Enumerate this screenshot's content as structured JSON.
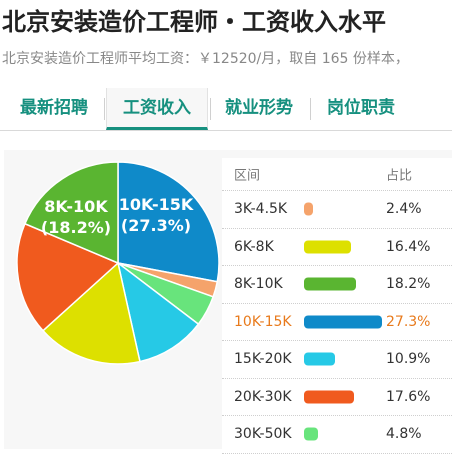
{
  "header": {
    "title": "北京安装造价工程师・工资收入水平",
    "subtitle": "北京安装造价工程师平均工资：￥12520/月，取自 165 份样本，"
  },
  "tabs": [
    {
      "label": "最新招聘",
      "active": false
    },
    {
      "label": "工资收入",
      "active": true
    },
    {
      "label": "就业形势",
      "active": false
    },
    {
      "label": "岗位职责",
      "active": false
    }
  ],
  "table": {
    "col_range": "区间",
    "col_share": "占比",
    "highlight_color": "#e87a1c"
  },
  "chart_data": {
    "type": "pie",
    "categories": [
      "3K-4.5K",
      "6K-8K",
      "8K-10K",
      "10K-15K",
      "15K-20K",
      "20K-30K",
      "30K-50K"
    ],
    "values": [
      2.4,
      16.4,
      18.2,
      27.3,
      10.9,
      17.6,
      4.8
    ],
    "value_labels": [
      "2.4%",
      "16.4%",
      "18.2%",
      "27.3%",
      "10.9%",
      "17.6%",
      "4.8%"
    ],
    "colors": [
      "#f5a36b",
      "#dde000",
      "#5ab531",
      "#0f8ac9",
      "#26c9e6",
      "#f05a1e",
      "#68e47c"
    ],
    "pie_order": [
      "10K-15K",
      "3K-4.5K",
      "30K-50K",
      "15K-20K",
      "6K-8K",
      "20K-30K",
      "8K-10K"
    ],
    "highlighted": "10K-15K",
    "slice_labels": [
      {
        "category": "8K-10K",
        "name": "8K-10K",
        "percent": "(18.2%)"
      },
      {
        "category": "10K-15K",
        "name": "10K-15K",
        "percent": "(27.3%)"
      }
    ]
  }
}
